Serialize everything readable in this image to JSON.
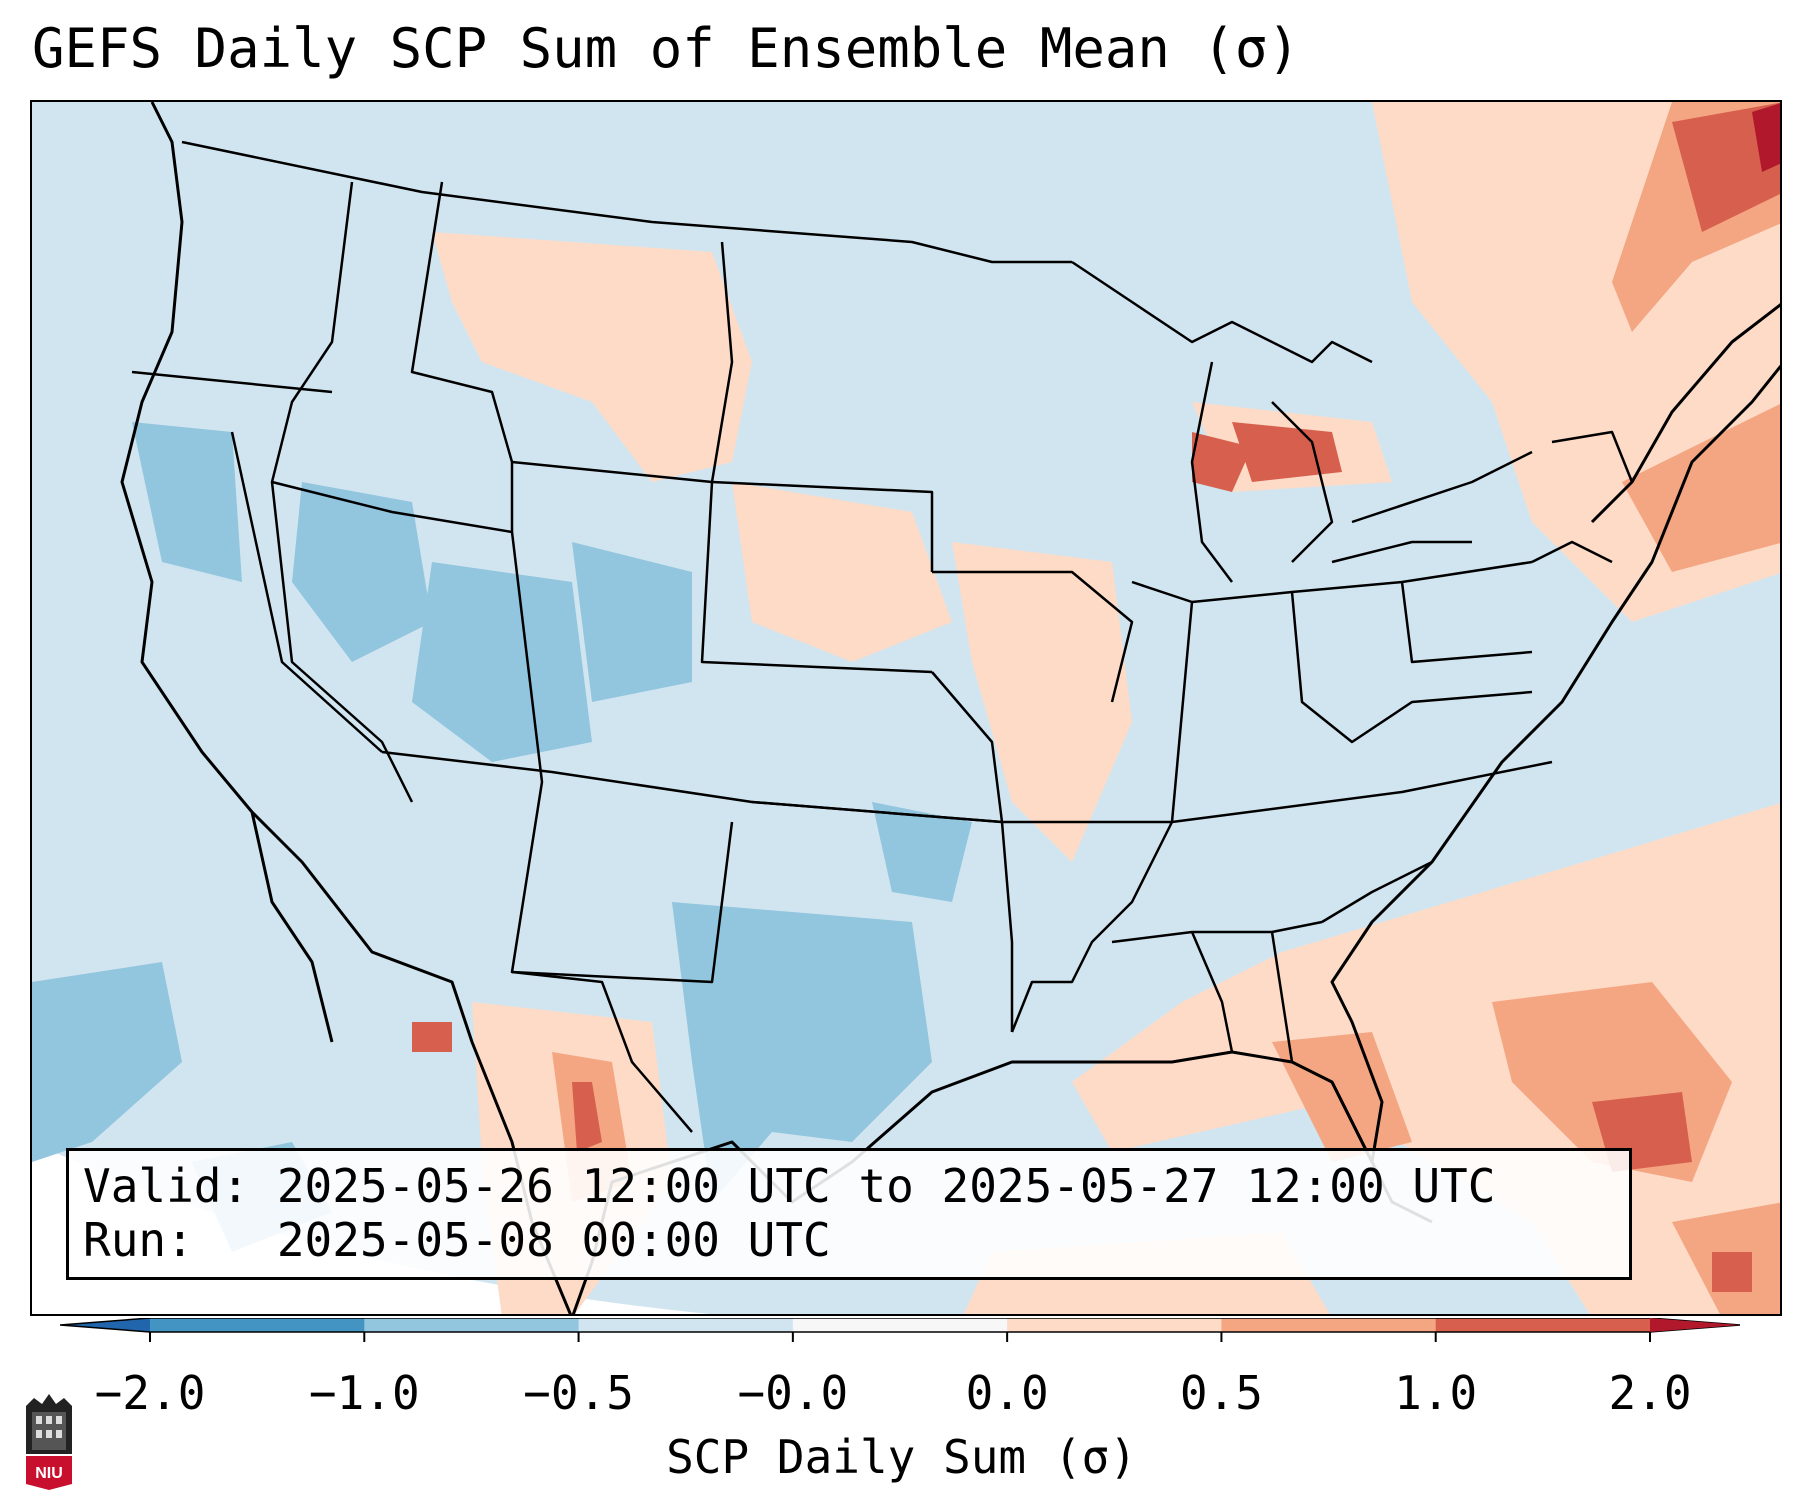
{
  "title": "GEFS Daily SCP Sum of Ensemble Mean (σ)",
  "info": {
    "valid_line": "Valid: 2025-05-26 12:00 UTC to 2025-05-27 12:00 UTC",
    "run_line": "Run:   2025-05-08 00:00 UTC"
  },
  "colorbar": {
    "label": "SCP Daily Sum (σ)",
    "ticks": [
      "−2.0",
      "−1.0",
      "−0.5",
      "−0.0",
      "0.0",
      "0.5",
      "1.0",
      "2.0"
    ],
    "colors": [
      "#4393c3",
      "#92c5de",
      "#d1e5f0",
      "#f7f7f7",
      "#fddbc7",
      "#f4a582",
      "#d6604d"
    ],
    "under_color": "#2166ac",
    "over_color": "#b2182b"
  },
  "logo": {
    "name": "niu-logo",
    "text": "NIU"
  }
}
